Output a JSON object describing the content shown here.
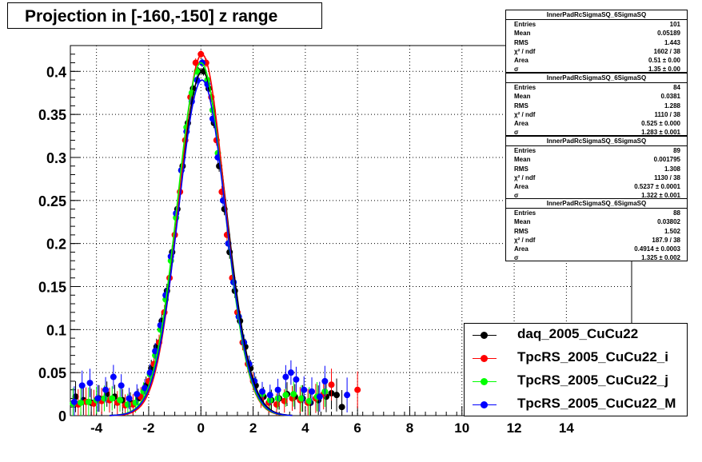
{
  "title": "Projection in [-160,-150] z range",
  "chart_data": {
    "type": "scatter",
    "title": "Projection in [-160,-150] z range",
    "xlabel": "",
    "ylabel": "",
    "xlim": [
      -5,
      16.5
    ],
    "ylim": [
      0,
      0.43
    ],
    "x_ticks": [
      -4,
      -2,
      0,
      2,
      4,
      6,
      8,
      10,
      12,
      14
    ],
    "y_ticks": [
      0,
      0.05,
      0.1,
      0.15,
      0.2,
      0.25,
      0.3,
      0.35,
      0.4
    ],
    "x_tick_labels": [
      "-4",
      "-2",
      "0",
      "2",
      "4",
      "6",
      "8",
      "10",
      "12",
      "14"
    ],
    "y_tick_labels": [
      "0",
      "0.05",
      "0.1",
      "0.15",
      "0.2",
      "0.25",
      "0.3",
      "0.35",
      "0.4"
    ],
    "grid": true,
    "legend_position": "bottom-right",
    "series": [
      {
        "name": "daq_2005_CuCu22",
        "color": "#000000",
        "fit": {
          "amplitude": 0.4,
          "mean": 0.05,
          "sigma": 1.35
        },
        "points": [
          [
            -4.8,
            0.022
          ],
          [
            -4.5,
            0.018
          ],
          [
            -4.2,
            0.015
          ],
          [
            -3.9,
            0.02
          ],
          [
            -3.6,
            0.025
          ],
          [
            -3.3,
            0.022
          ],
          [
            -3.0,
            0.018
          ],
          [
            -2.7,
            0.015
          ],
          [
            -2.4,
            0.02
          ],
          [
            -2.1,
            0.035
          ],
          [
            -1.9,
            0.055
          ],
          [
            -1.7,
            0.08
          ],
          [
            -1.5,
            0.11
          ],
          [
            -1.3,
            0.145
          ],
          [
            -1.1,
            0.19
          ],
          [
            -0.9,
            0.24
          ],
          [
            -0.7,
            0.29
          ],
          [
            -0.5,
            0.34
          ],
          [
            -0.3,
            0.38
          ],
          [
            -0.1,
            0.4
          ],
          [
            0.1,
            0.4
          ],
          [
            0.3,
            0.38
          ],
          [
            0.5,
            0.34
          ],
          [
            0.7,
            0.29
          ],
          [
            0.9,
            0.24
          ],
          [
            1.1,
            0.19
          ],
          [
            1.3,
            0.145
          ],
          [
            1.5,
            0.11
          ],
          [
            1.7,
            0.08
          ],
          [
            1.9,
            0.055
          ],
          [
            2.1,
            0.035
          ],
          [
            2.4,
            0.022
          ],
          [
            2.7,
            0.018
          ],
          [
            3.0,
            0.02
          ],
          [
            3.3,
            0.025
          ],
          [
            3.6,
            0.022
          ],
          [
            3.9,
            0.02
          ],
          [
            4.2,
            0.015
          ],
          [
            4.5,
            0.018
          ],
          [
            4.8,
            0.022
          ],
          [
            5.0,
            0.026
          ],
          [
            5.2,
            0.024
          ],
          [
            5.4,
            0.01
          ]
        ]
      },
      {
        "name": "TpcRS_2005_CuCu22_i",
        "color": "#ff0000",
        "fit": {
          "amplitude": 0.42,
          "mean": 0.04,
          "sigma": 1.28
        },
        "points": [
          [
            -4.7,
            0.013
          ],
          [
            -4.4,
            0.016
          ],
          [
            -4.1,
            0.014
          ],
          [
            -3.8,
            0.017
          ],
          [
            -3.5,
            0.018
          ],
          [
            -3.2,
            0.015
          ],
          [
            -2.9,
            0.012
          ],
          [
            -2.6,
            0.013
          ],
          [
            -2.3,
            0.022
          ],
          [
            -2.0,
            0.04
          ],
          [
            -1.8,
            0.06
          ],
          [
            -1.6,
            0.085
          ],
          [
            -1.4,
            0.12
          ],
          [
            -1.2,
            0.16
          ],
          [
            -1.0,
            0.21
          ],
          [
            -0.8,
            0.26
          ],
          [
            -0.6,
            0.32
          ],
          [
            -0.4,
            0.37
          ],
          [
            -0.2,
            0.41
          ],
          [
            0.0,
            0.42
          ],
          [
            0.2,
            0.41
          ],
          [
            0.4,
            0.37
          ],
          [
            0.6,
            0.32
          ],
          [
            0.8,
            0.26
          ],
          [
            1.0,
            0.21
          ],
          [
            1.2,
            0.16
          ],
          [
            1.4,
            0.12
          ],
          [
            1.6,
            0.085
          ],
          [
            1.8,
            0.06
          ],
          [
            2.0,
            0.04
          ],
          [
            2.3,
            0.02
          ],
          [
            2.6,
            0.015
          ],
          [
            2.9,
            0.013
          ],
          [
            3.2,
            0.017
          ],
          [
            3.5,
            0.02
          ],
          [
            3.8,
            0.018
          ],
          [
            4.1,
            0.015
          ],
          [
            4.4,
            0.02
          ],
          [
            4.7,
            0.025
          ],
          [
            5.0,
            0.036
          ],
          [
            6.0,
            0.03
          ]
        ]
      },
      {
        "name": "TpcRS_2005_CuCu22_j",
        "color": "#00ff00",
        "fit": {
          "amplitude": 0.41,
          "mean": 0.0,
          "sigma": 1.32
        },
        "points": [
          [
            -4.9,
            0.014
          ],
          [
            -4.6,
            0.015
          ],
          [
            -4.3,
            0.016
          ],
          [
            -4.0,
            0.018
          ],
          [
            -3.7,
            0.02
          ],
          [
            -3.4,
            0.02
          ],
          [
            -3.1,
            0.018
          ],
          [
            -2.8,
            0.013
          ],
          [
            -2.5,
            0.015
          ],
          [
            -2.2,
            0.028
          ],
          [
            -1.95,
            0.048
          ],
          [
            -1.75,
            0.07
          ],
          [
            -1.55,
            0.1
          ],
          [
            -1.35,
            0.135
          ],
          [
            -1.15,
            0.18
          ],
          [
            -0.95,
            0.23
          ],
          [
            -0.75,
            0.285
          ],
          [
            -0.55,
            0.335
          ],
          [
            -0.35,
            0.375
          ],
          [
            -0.15,
            0.4
          ],
          [
            0.05,
            0.41
          ],
          [
            0.25,
            0.39
          ],
          [
            0.45,
            0.355
          ],
          [
            0.65,
            0.305
          ],
          [
            0.85,
            0.25
          ],
          [
            1.05,
            0.2
          ],
          [
            1.25,
            0.155
          ],
          [
            1.45,
            0.115
          ],
          [
            1.65,
            0.085
          ],
          [
            1.85,
            0.06
          ],
          [
            2.05,
            0.04
          ],
          [
            2.35,
            0.025
          ],
          [
            2.65,
            0.018
          ],
          [
            2.95,
            0.02
          ],
          [
            3.25,
            0.024
          ],
          [
            3.55,
            0.025
          ],
          [
            3.85,
            0.02
          ],
          [
            4.15,
            0.017
          ],
          [
            4.45,
            0.022
          ],
          [
            4.75,
            0.028
          ]
        ]
      },
      {
        "name": "TpcRS_2005_CuCu22_M",
        "color": "#0000ff",
        "fit": {
          "amplitude": 0.39,
          "mean": 0.04,
          "sigma": 1.33
        },
        "points": [
          [
            -4.85,
            0.016
          ],
          [
            -4.55,
            0.035
          ],
          [
            -4.25,
            0.038
          ],
          [
            -3.95,
            0.02
          ],
          [
            -3.65,
            0.03
          ],
          [
            -3.35,
            0.045
          ],
          [
            -3.05,
            0.035
          ],
          [
            -2.75,
            0.02
          ],
          [
            -2.45,
            0.025
          ],
          [
            -2.15,
            0.032
          ],
          [
            -1.95,
            0.05
          ],
          [
            -1.75,
            0.075
          ],
          [
            -1.55,
            0.105
          ],
          [
            -1.35,
            0.14
          ],
          [
            -1.15,
            0.185
          ],
          [
            -0.95,
            0.235
          ],
          [
            -0.75,
            0.285
          ],
          [
            -0.55,
            0.33
          ],
          [
            -0.35,
            0.365
          ],
          [
            -0.15,
            0.39
          ],
          [
            0.05,
            0.41
          ],
          [
            0.25,
            0.385
          ],
          [
            0.45,
            0.345
          ],
          [
            0.65,
            0.3
          ],
          [
            0.85,
            0.25
          ],
          [
            1.05,
            0.2
          ],
          [
            1.25,
            0.155
          ],
          [
            1.45,
            0.115
          ],
          [
            1.65,
            0.085
          ],
          [
            1.85,
            0.06
          ],
          [
            2.05,
            0.04
          ],
          [
            2.35,
            0.028
          ],
          [
            2.65,
            0.024
          ],
          [
            2.95,
            0.03
          ],
          [
            3.25,
            0.045
          ],
          [
            3.45,
            0.05
          ],
          [
            3.65,
            0.042
          ],
          [
            3.95,
            0.03
          ],
          [
            4.25,
            0.028
          ],
          [
            4.55,
            0.022
          ],
          [
            4.75,
            0.04
          ],
          [
            5.6,
            0.024
          ]
        ]
      }
    ]
  },
  "stats_boxes": [
    {
      "title": "InnerPadRcSigmaSQ_6SigmaSQ",
      "rows": [
        [
          "Entries",
          "101"
        ],
        [
          "Mean",
          "0.05189"
        ],
        [
          "RMS",
          "1.443"
        ],
        [
          "χ² / ndf",
          "1602 / 38"
        ],
        [
          "Area",
          "0.51 ± 0.00"
        ],
        [
          "σ",
          "1.35 ± 0.00"
        ]
      ]
    },
    {
      "title": "InnerPadRcSigmaSQ_6SigmaSQ",
      "rows": [
        [
          "Entries",
          "84"
        ],
        [
          "Mean",
          "0.0381"
        ],
        [
          "RMS",
          "1.288"
        ],
        [
          "χ² / ndf",
          "1110 / 38"
        ],
        [
          "Area",
          "0.525 ± 0.000"
        ],
        [
          "σ",
          "1.283 ± 0.001"
        ]
      ]
    },
    {
      "title": "InnerPadRcSigmaSQ_6SigmaSQ",
      "rows": [
        [
          "Entries",
          "89"
        ],
        [
          "Mean",
          "0.001795"
        ],
        [
          "RMS",
          "1.308"
        ],
        [
          "χ² / ndf",
          "1130 / 38"
        ],
        [
          "Area",
          "0.5237 ± 0.0001"
        ],
        [
          "σ",
          "1.322 ± 0.001"
        ]
      ]
    },
    {
      "title": "InnerPadRcSigmaSQ_6SigmaSQ",
      "rows": [
        [
          "Entries",
          "88"
        ],
        [
          "Mean",
          "0.03802"
        ],
        [
          "RMS",
          "1.502"
        ],
        [
          "χ² / ndf",
          "187.9 / 38"
        ],
        [
          "Area",
          "0.4914 ± 0.0003"
        ],
        [
          "σ",
          "1.325 ± 0.002"
        ]
      ]
    }
  ],
  "legend": [
    {
      "label": "daq_2005_CuCu22",
      "color": "#000000"
    },
    {
      "label": "TpcRS_2005_CuCu22_i",
      "color": "#ff0000"
    },
    {
      "label": "TpcRS_2005_CuCu22_j",
      "color": "#00ff00"
    },
    {
      "label": "TpcRS_2005_CuCu22_M",
      "color": "#0000ff"
    }
  ]
}
